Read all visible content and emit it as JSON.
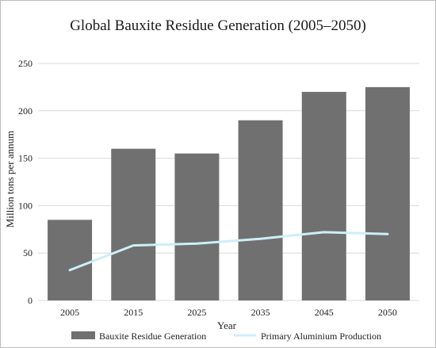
{
  "chart_data": {
    "type": "bar",
    "title": "Global Bauxite Residue Generation (2005–2050)",
    "xlabel": "Year",
    "ylabel": "Million tons per annum",
    "categories": [
      "2005",
      "2015",
      "2025",
      "2035",
      "2045",
      "2050"
    ],
    "ylim": [
      0,
      250
    ],
    "yticks": [
      0,
      50,
      100,
      150,
      200,
      250
    ],
    "grid": true,
    "legend_position": "bottom",
    "series": [
      {
        "name": "Bauxite Residue Generation",
        "type": "bar",
        "color": "#707070",
        "values": [
          85,
          160,
          155,
          190,
          220,
          225
        ]
      },
      {
        "name": "Primary Aluminium Production",
        "type": "line",
        "color": "#cdeff8",
        "values": [
          32,
          58,
          60,
          65,
          72,
          70
        ]
      }
    ]
  }
}
